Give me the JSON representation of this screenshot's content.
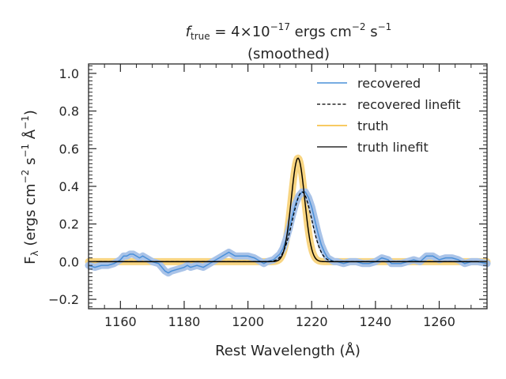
{
  "chart_data": {
    "type": "line",
    "title_prefix": "f",
    "title_subscript": "true",
    "title_eq": " = 4×10",
    "title_exp": "−17",
    "title_units": " ergs cm",
    "title_units_exp1": "−2",
    "title_units_s": " s",
    "title_units_exp2": "−1",
    "title_line2": "(smoothed)",
    "xlabel": "Rest Wavelength (Å)",
    "ylabel_main": "F",
    "ylabel_sub": "λ",
    "ylabel_rest": " (ergs cm",
    "ylabel_exp1": "−2",
    "ylabel_s": " s",
    "ylabel_exp2": "−1",
    "ylabel_A": " Å",
    "ylabel_exp3": "−1",
    "ylabel_close": ")",
    "xlim": [
      1150,
      1275
    ],
    "ylim": [
      -0.25,
      1.05
    ],
    "xticks": [
      1160,
      1180,
      1200,
      1220,
      1240,
      1260
    ],
    "xtick_labels": [
      "1160",
      "1180",
      "1200",
      "1220",
      "1240",
      "1260"
    ],
    "yticks": [
      -0.2,
      0.0,
      0.2,
      0.4,
      0.6,
      0.8,
      1.0
    ],
    "ytick_labels": [
      "−0.2",
      "0.0",
      "0.2",
      "0.4",
      "0.6",
      "0.8",
      "1.0"
    ],
    "legend_position": "upper-right",
    "colors": {
      "recovered": "#4a90d9",
      "recovered_band": "#a9c3e8",
      "truth": "#f5b82e",
      "truth_band": "#f8d582",
      "linefit": "#000000"
    },
    "series": [
      {
        "name": "recovered",
        "style": "solid",
        "x": [
          1150,
          1152,
          1154,
          1156,
          1158,
          1160,
          1161,
          1162,
          1163,
          1164,
          1165,
          1166,
          1167,
          1168,
          1170,
          1172,
          1173,
          1174,
          1175,
          1176,
          1178,
          1180,
          1181,
          1182,
          1184,
          1186,
          1188,
          1190,
          1191,
          1192,
          1193,
          1194,
          1195,
          1196,
          1197,
          1198,
          1200,
          1202,
          1204,
          1205,
          1206,
          1208,
          1210,
          1211,
          1212,
          1213,
          1214,
          1215,
          1216,
          1217,
          1218,
          1219,
          1220,
          1221,
          1222,
          1223,
          1224,
          1225,
          1226,
          1227,
          1228,
          1230,
          1232,
          1234,
          1236,
          1238,
          1240,
          1242,
          1244,
          1245,
          1246,
          1248,
          1250,
          1252,
          1254,
          1256,
          1258,
          1260,
          1262,
          1264,
          1266,
          1268,
          1270,
          1272,
          1275
        ],
        "y": [
          -0.02,
          -0.03,
          -0.02,
          -0.02,
          -0.01,
          0.01,
          0.03,
          0.03,
          0.04,
          0.04,
          0.03,
          0.02,
          0.03,
          0.02,
          0.0,
          -0.01,
          -0.03,
          -0.05,
          -0.06,
          -0.05,
          -0.04,
          -0.03,
          -0.02,
          -0.03,
          -0.02,
          -0.03,
          -0.01,
          0.01,
          0.02,
          0.03,
          0.04,
          0.05,
          0.04,
          0.03,
          0.03,
          0.03,
          0.03,
          0.02,
          0.0,
          -0.01,
          0.0,
          0.01,
          0.04,
          0.07,
          0.12,
          0.18,
          0.25,
          0.31,
          0.35,
          0.37,
          0.37,
          0.34,
          0.29,
          0.22,
          0.15,
          0.09,
          0.05,
          0.02,
          0.01,
          0.0,
          0.0,
          -0.01,
          0.0,
          0.0,
          -0.01,
          -0.01,
          0.0,
          0.02,
          0.01,
          -0.01,
          -0.01,
          -0.01,
          0.0,
          0.01,
          0.0,
          0.03,
          0.03,
          0.01,
          0.02,
          0.02,
          0.01,
          -0.01,
          0.0,
          0.0,
          -0.01
        ]
      },
      {
        "name": "recovered linefit",
        "style": "dashed",
        "gaussian": {
          "center": 1217.0,
          "amplitude": 0.37,
          "sigma": 3.0,
          "baseline": 0.0
        }
      },
      {
        "name": "truth",
        "style": "solid",
        "gaussian": {
          "center": 1215.7,
          "amplitude": 0.55,
          "sigma": 2.1,
          "baseline": 0.0
        }
      },
      {
        "name": "truth linefit",
        "style": "solid",
        "gaussian": {
          "center": 1215.7,
          "amplitude": 0.55,
          "sigma": 2.1,
          "baseline": 0.0
        }
      }
    ]
  },
  "legend": {
    "items": [
      {
        "label": "recovered"
      },
      {
        "label": "recovered linefit"
      },
      {
        "label": "truth"
      },
      {
        "label": "truth linefit"
      }
    ]
  }
}
